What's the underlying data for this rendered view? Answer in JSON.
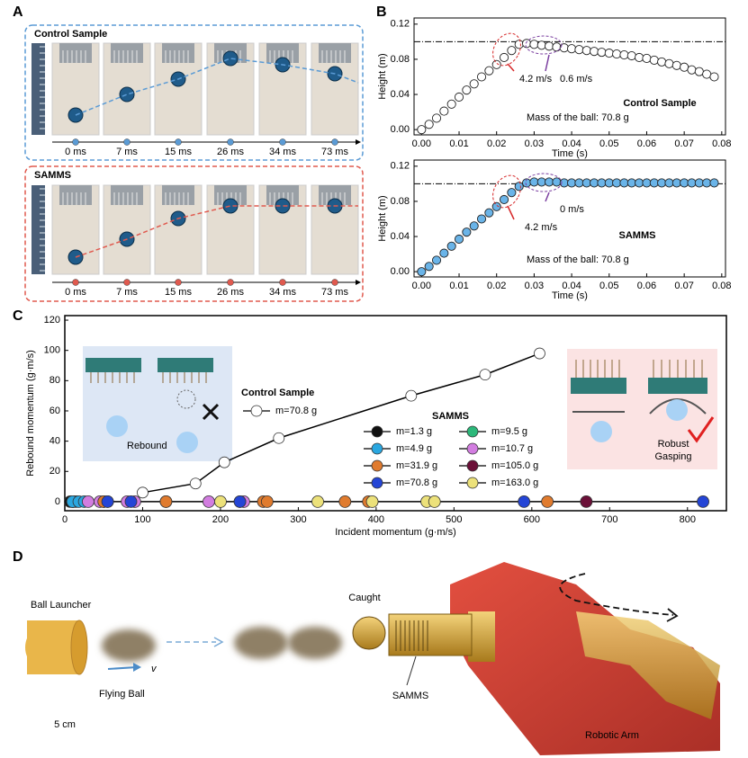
{
  "panel_labels": [
    "A",
    "B",
    "C",
    "D"
  ],
  "panel_a": {
    "strips": [
      {
        "title": "Control Sample",
        "color": "#5b9bd5",
        "times": [
          "0 ms",
          "7 ms",
          "15 ms",
          "26 ms",
          "34 ms",
          "73 ms"
        ]
      },
      {
        "title": "SAMMS",
        "color": "#e05a4f",
        "times": [
          "0 ms",
          "7 ms",
          "15 ms",
          "26 ms",
          "34 ms",
          "73 ms"
        ]
      }
    ]
  },
  "chart_data": [
    {
      "type": "scatter",
      "xlabel": "Time (s)",
      "ylabel": "Height (m)",
      "xlim": [
        -0.002,
        0.081
      ],
      "ylim": [
        -0.006,
        0.127
      ],
      "xticks": [
        {
          "value": 0,
          "label": "0.00"
        },
        {
          "value": 0.01,
          "label": "0.01"
        },
        {
          "value": 0.02,
          "label": "0.02"
        },
        {
          "value": 0.03,
          "label": "0.03"
        },
        {
          "value": 0.04,
          "label": "0.04"
        },
        {
          "value": 0.05,
          "label": "0.05"
        },
        {
          "value": 0.06,
          "label": "0.06"
        },
        {
          "value": 0.07,
          "label": "0.07"
        },
        {
          "value": 0.08,
          "label": "0.08"
        }
      ],
      "yticks": [
        {
          "value": 0,
          "label": "0.00"
        },
        {
          "value": 0.04,
          "label": "0.04"
        },
        {
          "value": 0.08,
          "label": "0.08"
        },
        {
          "value": 0.12,
          "label": "0.12"
        }
      ],
      "hline": 0.1,
      "annotations": [
        {
          "text": "4.2 m/s",
          "color": "#d62728"
        },
        {
          "text": "0.6 m/s",
          "color": "#7b3fa0"
        },
        {
          "text": "Control Sample",
          "color": "#000000"
        },
        {
          "text": "Mass of the ball: 70.8 g",
          "color": "#000000"
        }
      ],
      "series": [
        {
          "color": "#ffffff",
          "x": [
            0,
            0.002,
            0.004,
            0.006,
            0.008,
            0.01,
            0.012,
            0.014,
            0.016,
            0.018,
            0.02,
            0.022,
            0.024,
            0.026,
            0.028,
            0.03,
            0.032,
            0.034,
            0.036,
            0.038,
            0.04,
            0.042,
            0.044,
            0.046,
            0.048,
            0.05,
            0.052,
            0.054,
            0.056,
            0.058,
            0.06,
            0.062,
            0.064,
            0.066,
            0.068,
            0.07,
            0.072,
            0.074,
            0.076,
            0.078
          ],
          "values": [
            0,
            0.006,
            0.013,
            0.021,
            0.029,
            0.037,
            0.045,
            0.052,
            0.06,
            0.067,
            0.074,
            0.082,
            0.09,
            0.097,
            0.098,
            0.097,
            0.096,
            0.095,
            0.094,
            0.093,
            0.092,
            0.091,
            0.09,
            0.089,
            0.088,
            0.087,
            0.086,
            0.085,
            0.084,
            0.082,
            0.081,
            0.079,
            0.077,
            0.075,
            0.073,
            0.071,
            0.068,
            0.066,
            0.063,
            0.06
          ]
        }
      ]
    },
    {
      "type": "scatter",
      "xlabel": "Time (s)",
      "ylabel": "Height (m)",
      "xlim": [
        -0.002,
        0.081
      ],
      "ylim": [
        -0.006,
        0.127
      ],
      "xticks": [
        {
          "value": 0,
          "label": "0.00"
        },
        {
          "value": 0.01,
          "label": "0.01"
        },
        {
          "value": 0.02,
          "label": "0.02"
        },
        {
          "value": 0.03,
          "label": "0.03"
        },
        {
          "value": 0.04,
          "label": "0.04"
        },
        {
          "value": 0.05,
          "label": "0.05"
        },
        {
          "value": 0.06,
          "label": "0.06"
        },
        {
          "value": 0.07,
          "label": "0.07"
        },
        {
          "value": 0.08,
          "label": "0.08"
        }
      ],
      "yticks": [
        {
          "value": 0,
          "label": "0.00"
        },
        {
          "value": 0.04,
          "label": "0.04"
        },
        {
          "value": 0.08,
          "label": "0.08"
        },
        {
          "value": 0.12,
          "label": "0.12"
        }
      ],
      "hline": 0.1,
      "annotations": [
        {
          "text": "4.2 m/s",
          "color": "#d62728"
        },
        {
          "text": "0 m/s",
          "color": "#7b3fa0"
        },
        {
          "text": "SAMMS",
          "color": "#000000"
        },
        {
          "text": "Mass of the ball: 70.8 g",
          "color": "#000000"
        }
      ],
      "series": [
        {
          "color": "#6ab4e8",
          "x": [
            0,
            0.002,
            0.004,
            0.006,
            0.008,
            0.01,
            0.012,
            0.014,
            0.016,
            0.018,
            0.02,
            0.022,
            0.024,
            0.026,
            0.028,
            0.03,
            0.032,
            0.034,
            0.036,
            0.038,
            0.04,
            0.042,
            0.044,
            0.046,
            0.048,
            0.05,
            0.052,
            0.054,
            0.056,
            0.058,
            0.06,
            0.062,
            0.064,
            0.066,
            0.068,
            0.07,
            0.072,
            0.074,
            0.076,
            0.078
          ],
          "values": [
            0,
            0.006,
            0.013,
            0.021,
            0.029,
            0.037,
            0.045,
            0.052,
            0.06,
            0.067,
            0.074,
            0.082,
            0.09,
            0.097,
            0.101,
            0.102,
            0.102,
            0.102,
            0.102,
            0.101,
            0.101,
            0.101,
            0.101,
            0.101,
            0.101,
            0.101,
            0.101,
            0.101,
            0.101,
            0.101,
            0.101,
            0.101,
            0.101,
            0.101,
            0.101,
            0.101,
            0.101,
            0.101,
            0.101,
            0.101
          ]
        }
      ]
    },
    {
      "type": "scatter",
      "xlabel": "Incident momentum (g·m/s)",
      "ylabel": "Rebound momentum (g·m/s)",
      "xlim": [
        0,
        850
      ],
      "ylim": [
        -6,
        123
      ],
      "xticks": [
        0,
        100,
        200,
        300,
        400,
        500,
        600,
        700,
        800
      ],
      "yticks": [
        0,
        20,
        40,
        60,
        80,
        100,
        120
      ],
      "legend_titles": [
        "Control Sample",
        "SAMMS"
      ],
      "series": [
        {
          "name": "m=70.8 g",
          "color": "#ffffff",
          "x": [
            100,
            168,
            205,
            275,
            445,
            540,
            610
          ],
          "values": [
            6,
            12,
            26,
            42,
            70,
            84,
            98
          ]
        },
        {
          "name": "m=1.3 g",
          "color": "#111111",
          "x": [
            7,
            10,
            12
          ],
          "values": [
            0,
            0,
            0
          ]
        },
        {
          "name": "m=9.5 g",
          "color": "#2cb87a",
          "x": [
            10,
            15
          ],
          "values": [
            0,
            0
          ]
        },
        {
          "name": "m=4.9 g",
          "color": "#2aa7e0",
          "x": [
            10,
            18,
            25,
            50,
            55
          ],
          "values": [
            0,
            0,
            0,
            0,
            0
          ]
        },
        {
          "name": "m=10.7 g",
          "color": "#d27de0",
          "x": [
            30,
            45,
            80,
            90,
            130,
            185,
            230
          ],
          "values": [
            0,
            0,
            0,
            0,
            0,
            0,
            0
          ]
        },
        {
          "name": "m=31.9 g",
          "color": "#e07b2e",
          "x": [
            50,
            130,
            225,
            255,
            260,
            360,
            390,
            620
          ],
          "values": [
            0,
            0,
            0,
            0,
            0,
            0,
            0,
            0
          ]
        },
        {
          "name": "m=105.0 g",
          "color": "#6b1038",
          "x": [
            670
          ],
          "values": [
            0
          ]
        },
        {
          "name": "m=70.8 g",
          "color": "#2445d6",
          "x": [
            55,
            85,
            225,
            590,
            820
          ],
          "values": [
            0,
            0,
            0,
            0,
            0
          ]
        },
        {
          "name": "m=163.0 g",
          "color": "#ece17a",
          "x": [
            200,
            325,
            395,
            465,
            475
          ],
          "values": [
            0,
            0,
            0,
            0,
            0
          ]
        }
      ]
    }
  ],
  "panel_c_insets": {
    "left": "Rebound",
    "right": [
      "Robust",
      "Gasping"
    ]
  },
  "panel_d": {
    "launcher": "Ball Launcher",
    "flying": "Flying Ball",
    "velocity": "v",
    "caught": "Caught",
    "gripper": "SAMMS",
    "arm": "Robotic Arm",
    "scale": "5 cm"
  }
}
